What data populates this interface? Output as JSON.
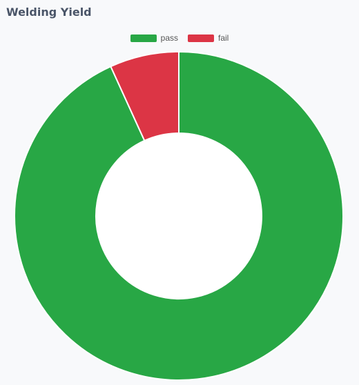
{
  "page": {
    "title": "Welding Yield"
  },
  "chart_data": {
    "type": "pie",
    "variant": "doughnut",
    "categories": [
      "pass",
      "fail"
    ],
    "values": [
      93.2,
      6.8
    ],
    "colors": [
      "#28a745",
      "#dc3545"
    ],
    "legend_position": "top",
    "start": "top",
    "direction": "clockwise"
  }
}
